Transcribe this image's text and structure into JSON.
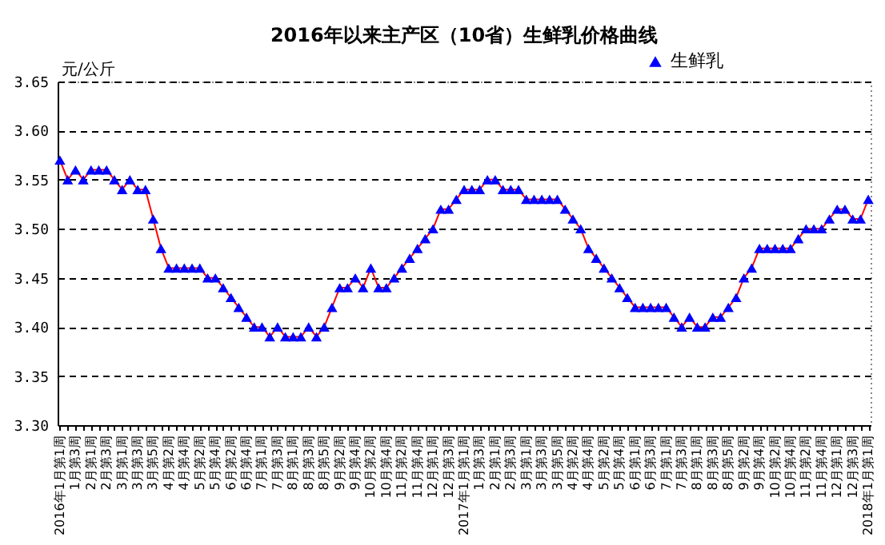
{
  "chart_data": {
    "type": "line",
    "title": "2016年以来主产区（10省）生鲜乳价格曲线",
    "ylabel": "元/公斤",
    "categories": [
      "2016年1月第1周",
      null,
      "1月第3周",
      null,
      "2月第1周",
      null,
      "2月第3周",
      null,
      "3月第1周",
      null,
      "3月第3周",
      null,
      "3月第5周",
      null,
      "4月第2周",
      null,
      "4月第4周",
      null,
      "5月第2周",
      null,
      "5月第4周",
      null,
      "6月第2周",
      null,
      "6月第4周",
      null,
      "7月第1周",
      null,
      "7月第3周",
      null,
      "8月第1周",
      null,
      "8月第3周",
      null,
      "8月第5周",
      null,
      "9月第2周",
      null,
      "9月第4周",
      null,
      "10月第2周",
      null,
      "10月第4周",
      null,
      "11月第2周",
      null,
      "11月第4周",
      null,
      "12月第1周",
      null,
      "12月第3周",
      null,
      "2017年1月第1周",
      null,
      "1月第3周",
      null,
      "2月第1周",
      null,
      "2月第3周",
      null,
      "3月第1周",
      null,
      "3月第3周",
      null,
      "3月第5周",
      null,
      "4月第2周",
      null,
      "4月第4周",
      null,
      "5月第2周",
      null,
      "5月第4周",
      null,
      "6月第1周",
      null,
      "6月第3周",
      null,
      "7月第1周",
      null,
      "7月第3周",
      null,
      "8月第1周",
      null,
      "8月第3周",
      null,
      "8月第5周",
      null,
      "9月第2周",
      null,
      "9月第4周",
      null,
      "10月第2周",
      null,
      "10月第4周",
      null,
      "11月第2周",
      null,
      "11月第4周",
      null,
      "12月第1周",
      null,
      "12月第3周",
      null,
      "2018年1月第1周"
    ],
    "series": [
      {
        "name": "生鲜乳",
        "color": "#0000ff",
        "values": [
          3.57,
          3.55,
          3.56,
          3.55,
          3.56,
          3.56,
          3.56,
          3.55,
          3.54,
          3.55,
          3.54,
          3.54,
          3.51,
          3.48,
          3.46,
          3.46,
          3.46,
          3.46,
          3.46,
          3.45,
          3.45,
          3.44,
          3.43,
          3.42,
          3.41,
          3.4,
          3.4,
          3.39,
          3.4,
          3.39,
          3.39,
          3.39,
          3.4,
          3.39,
          3.4,
          3.42,
          3.44,
          3.44,
          3.45,
          3.44,
          3.46,
          3.44,
          3.44,
          3.45,
          3.46,
          3.47,
          3.48,
          3.49,
          3.5,
          3.52,
          3.52,
          3.53,
          3.54,
          3.54,
          3.54,
          3.55,
          3.55,
          3.54,
          3.54,
          3.54,
          3.53,
          3.53,
          3.53,
          3.53,
          3.53,
          3.52,
          3.51,
          3.5,
          3.48,
          3.47,
          3.46,
          3.45,
          3.44,
          3.43,
          3.42,
          3.42,
          3.42,
          3.42,
          3.42,
          3.41,
          3.4,
          3.41,
          3.4,
          3.4,
          3.41,
          3.41,
          3.42,
          3.43,
          3.45,
          3.46,
          3.48,
          3.48,
          3.48,
          3.48,
          3.48,
          3.49,
          3.5,
          3.5,
          3.5,
          3.51,
          3.52,
          3.52,
          3.51,
          3.51,
          3.53
        ]
      }
    ],
    "ylim": [
      3.3,
      3.65
    ],
    "yticks": [
      {
        "value": 3.3,
        "label": "3.30"
      },
      3.35,
      {
        "value": 3.4,
        "label": "3.40"
      },
      3.45,
      {
        "value": 3.5,
        "label": "3.50"
      },
      3.55,
      {
        "value": 3.6,
        "label": "3.60"
      },
      3.65
    ],
    "grid": "y",
    "legend": "top right",
    "marker": "triangle",
    "line_style": "solid"
  }
}
